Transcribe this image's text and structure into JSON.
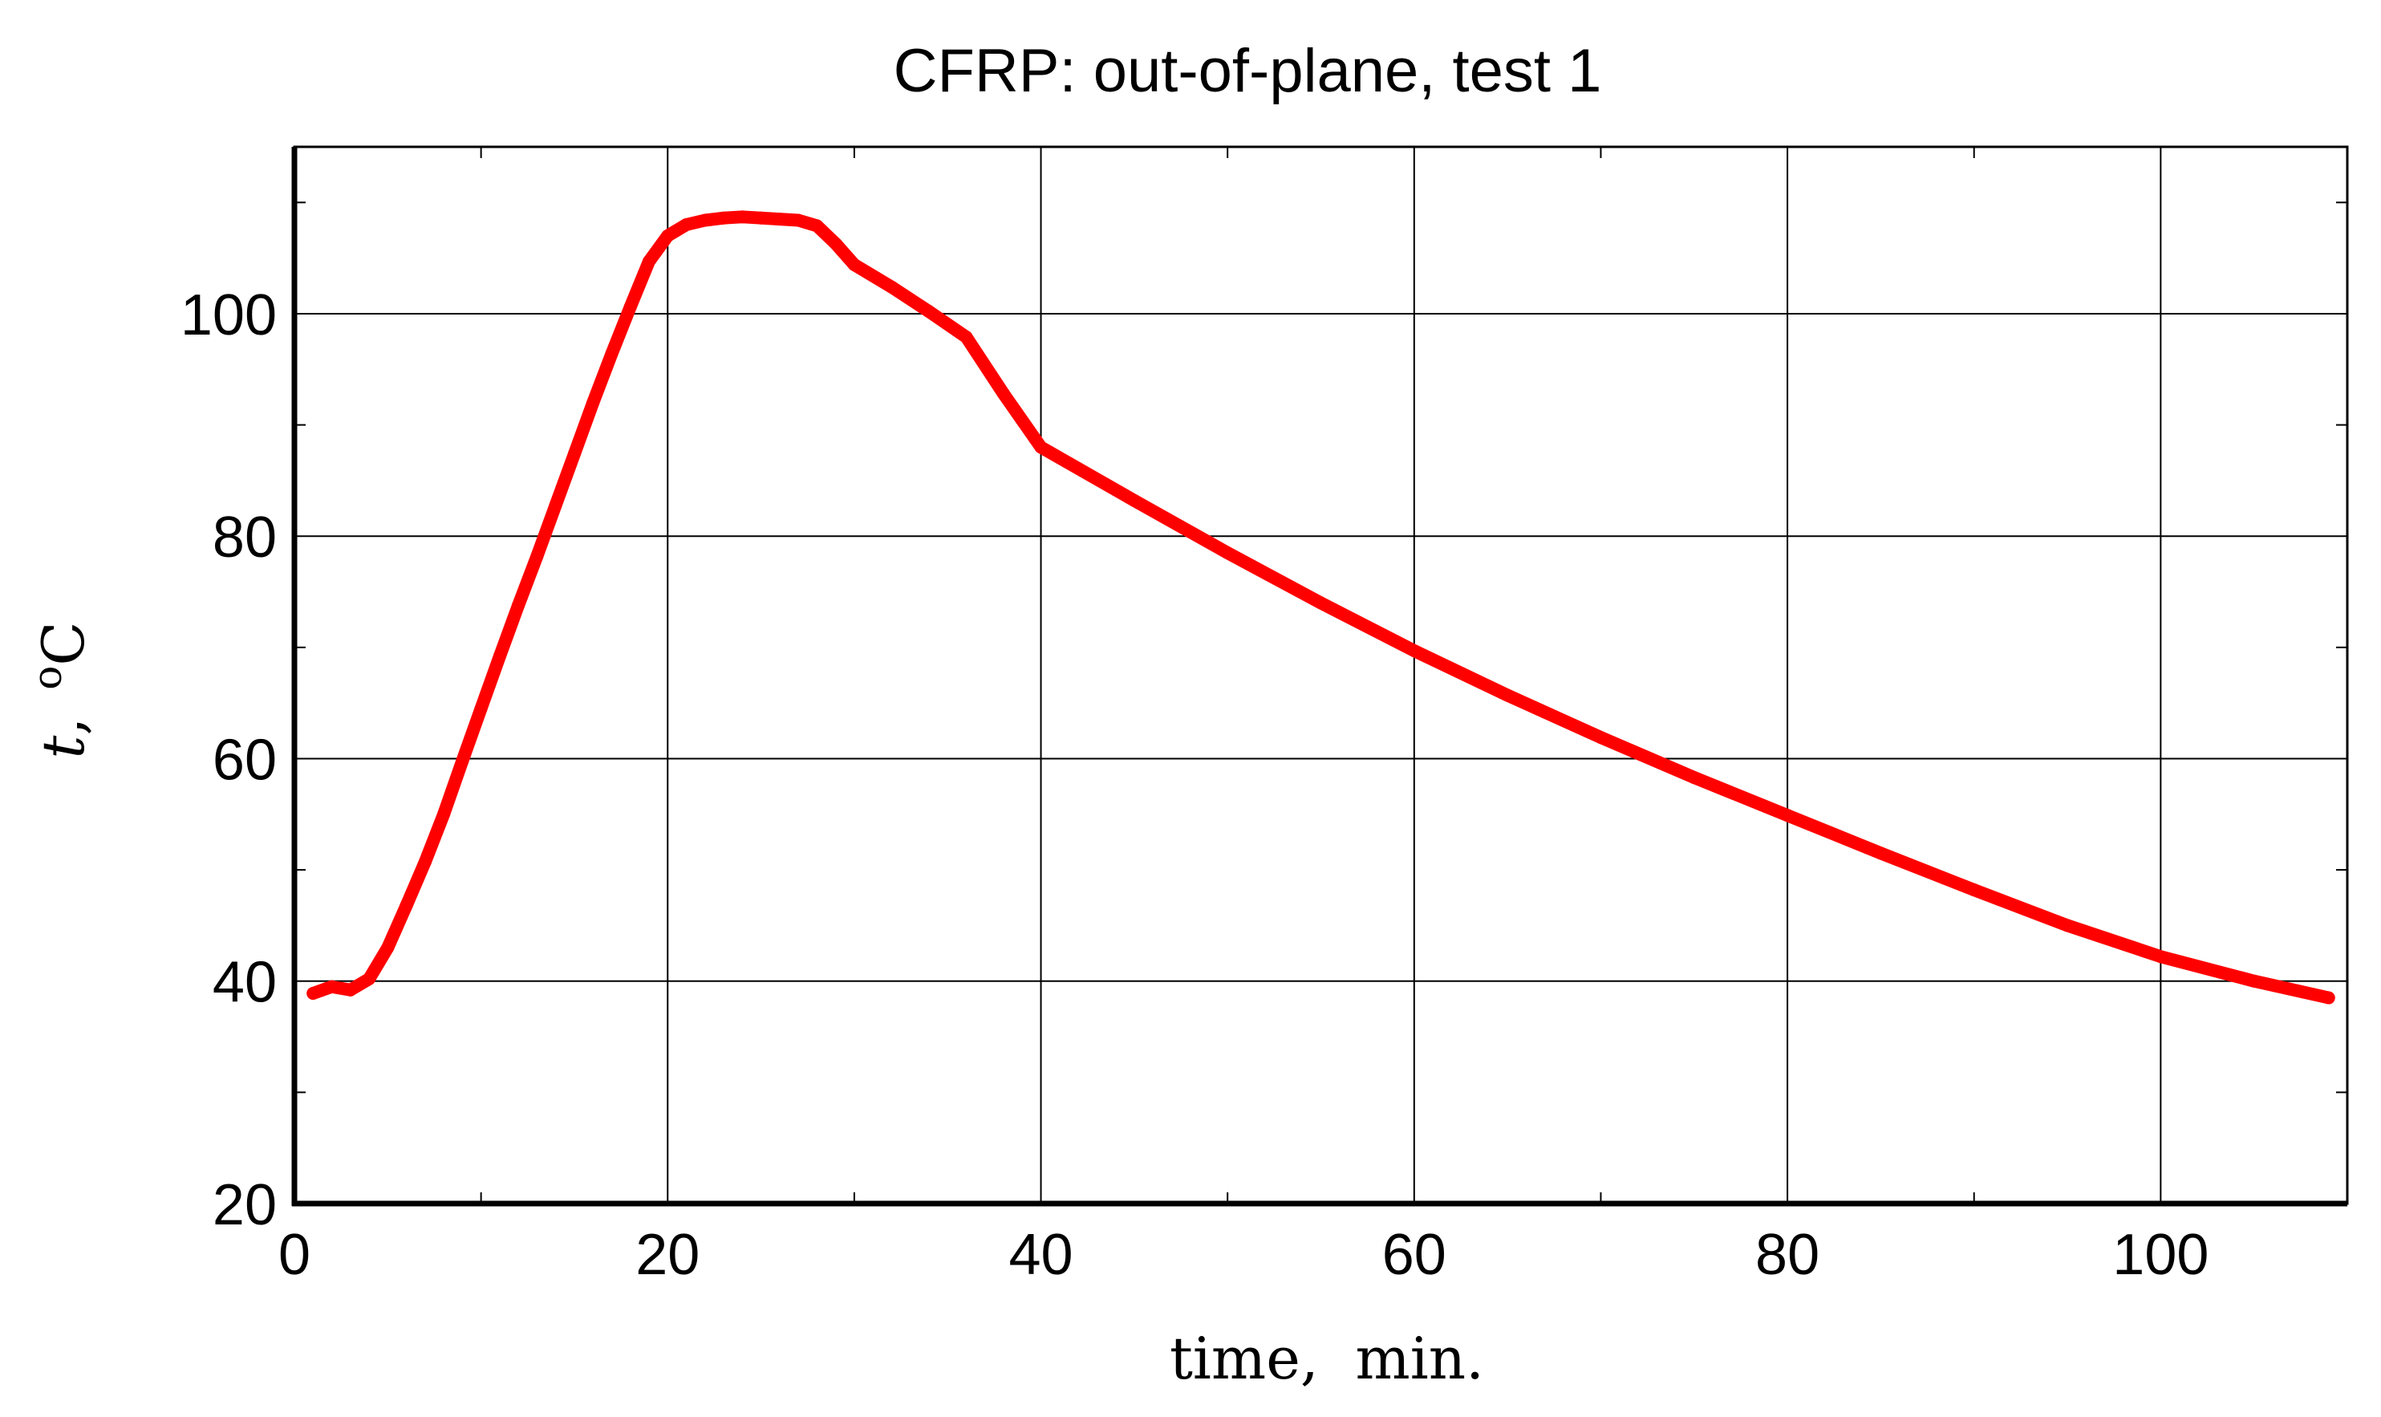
{
  "chart_data": {
    "type": "line",
    "title": "CFRP: out-of-plane, test 1",
    "xlabel": "time,  min.",
    "ylabel": {
      "symbol": "t",
      "separator": ",",
      "unit_sup": "o",
      "unit": "C"
    },
    "xlim": [
      0,
      110
    ],
    "ylim": [
      20,
      115
    ],
    "xticks": [
      0,
      20,
      40,
      60,
      80,
      100
    ],
    "yticks": [
      20,
      40,
      60,
      80,
      100
    ],
    "x_minor_step": 10,
    "y_minor_step": 10,
    "grid": true,
    "colors": {
      "series": "#ff0000",
      "grid": "#000000",
      "axes": "#000000"
    },
    "series": [
      {
        "x": [
          1,
          2,
          3,
          4,
          5,
          6,
          7,
          8,
          9,
          10,
          11,
          12,
          13,
          14,
          15,
          16,
          17,
          18,
          19,
          20,
          21,
          22,
          23,
          24,
          25,
          26,
          27,
          28,
          29,
          30,
          32,
          34,
          36,
          38,
          40,
          45,
          50,
          55,
          60,
          65,
          70,
          75,
          80,
          85,
          90,
          95,
          100,
          105,
          109
        ],
        "y": [
          38.9,
          39.5,
          39.2,
          40.2,
          43.0,
          46.8,
          50.7,
          55.0,
          59.8,
          64.5,
          69.2,
          73.8,
          78.2,
          82.8,
          87.4,
          92.0,
          96.4,
          100.6,
          104.7,
          107.0,
          108.0,
          108.4,
          108.6,
          108.7,
          108.6,
          108.5,
          108.4,
          107.9,
          106.3,
          104.4,
          102.4,
          100.2,
          97.9,
          92.8,
          88.0,
          83.2,
          78.5,
          74.0,
          69.7,
          65.7,
          61.9,
          58.3,
          54.9,
          51.5,
          48.2,
          45.0,
          42.2,
          40.0,
          38.5
        ]
      }
    ]
  }
}
